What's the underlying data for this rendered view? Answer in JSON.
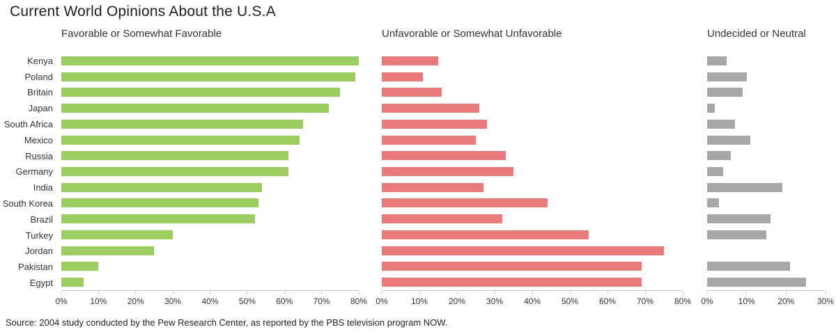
{
  "title": "Current World Opinions About the U.S.A",
  "source": "Source: 2004 study conducted by the Pew Research Center, as reported by the PBS television program NOW.",
  "colors": {
    "favorable": "#9ccd60",
    "unfavorable": "#ea7a79",
    "neutral": "#a7a7a7",
    "axis": "#c4c4c4",
    "text": "#333333"
  },
  "chart_data": {
    "type": "bar",
    "orientation": "horizontal",
    "grid": false,
    "legend": "none",
    "title": "Current World Opinions About the U.S.A",
    "categories": [
      "Kenya",
      "Poland",
      "Britain",
      "Japan",
      "South Africa",
      "Mexico",
      "Russia",
      "Germany",
      "India",
      "South Korea",
      "Brazil",
      "Turkey",
      "Jordan",
      "Pakistan",
      "Egypt"
    ],
    "series": [
      {
        "name": "Favorable or Somewhat Favorable",
        "color_key": "favorable",
        "xlim": [
          0,
          80
        ],
        "xticks": [
          "0%",
          "10%",
          "20%",
          "30%",
          "40%",
          "50%",
          "60%",
          "70%",
          "80%"
        ],
        "values": [
          80,
          79,
          75,
          72,
          65,
          64,
          61,
          61,
          54,
          53,
          52,
          30,
          25,
          10,
          6
        ]
      },
      {
        "name": "Unfavorable or Somewhat Unfavorable",
        "color_key": "unfavorable",
        "xlim": [
          0,
          80
        ],
        "xticks": [
          "0%",
          "10%",
          "20%",
          "30%",
          "40%",
          "50%",
          "60%",
          "70%",
          "80%"
        ],
        "values": [
          15,
          11,
          16,
          26,
          28,
          25,
          33,
          35,
          27,
          44,
          32,
          55,
          75,
          69,
          69
        ]
      },
      {
        "name": "Undecided or Neutral",
        "color_key": "neutral",
        "xlim": [
          0,
          30
        ],
        "xticks": [
          "0%",
          "10%",
          "20%",
          "30%"
        ],
        "values": [
          5,
          10,
          9,
          2,
          7,
          11,
          6,
          4,
          19,
          3,
          16,
          15,
          0,
          21,
          25
        ]
      }
    ]
  }
}
